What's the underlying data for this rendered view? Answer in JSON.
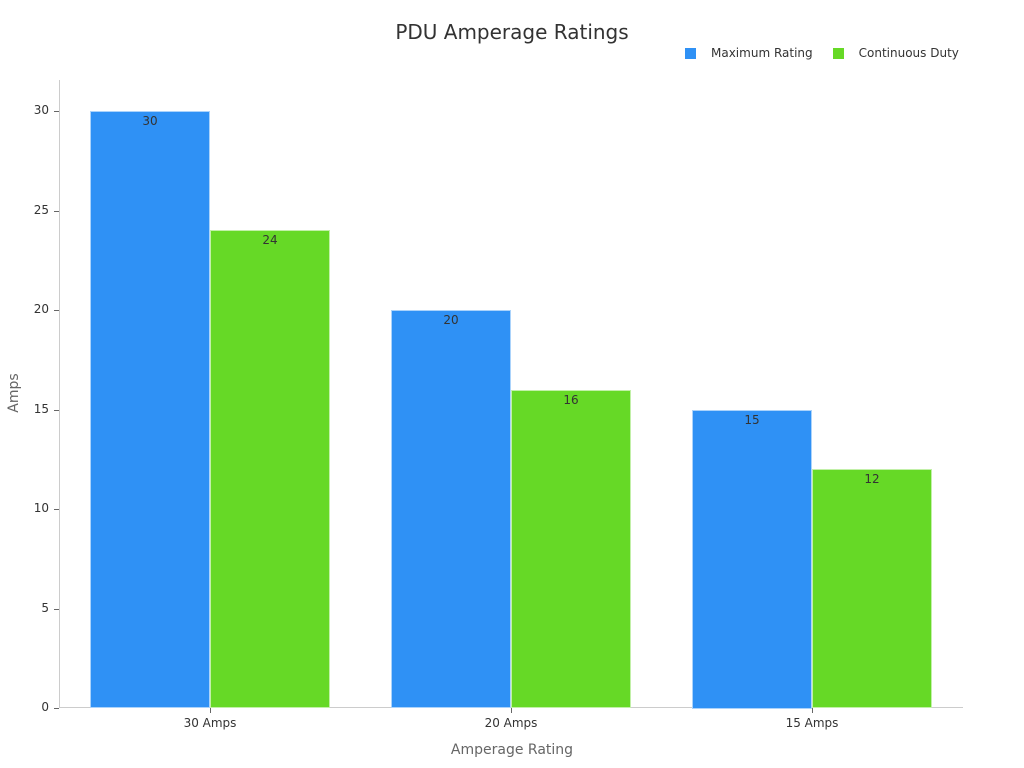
{
  "chart_data": {
    "type": "bar",
    "title": "PDU Amperage Ratings",
    "xlabel": "Amperage Rating",
    "ylabel": "Amps",
    "categories": [
      "30 Amps",
      "20 Amps",
      "15 Amps"
    ],
    "series": [
      {
        "name": "Maximum Rating",
        "color": "#2f91f5",
        "values": [
          30,
          20,
          15
        ]
      },
      {
        "name": "Continuous Duty",
        "color": "#66d926",
        "values": [
          24,
          16,
          12
        ]
      }
    ],
    "ylim": [
      0,
      31.5
    ],
    "yticks": [
      0,
      5,
      10,
      15,
      20,
      25,
      30
    ],
    "grid": false,
    "legend_position": "top-right",
    "data_labels": true
  }
}
